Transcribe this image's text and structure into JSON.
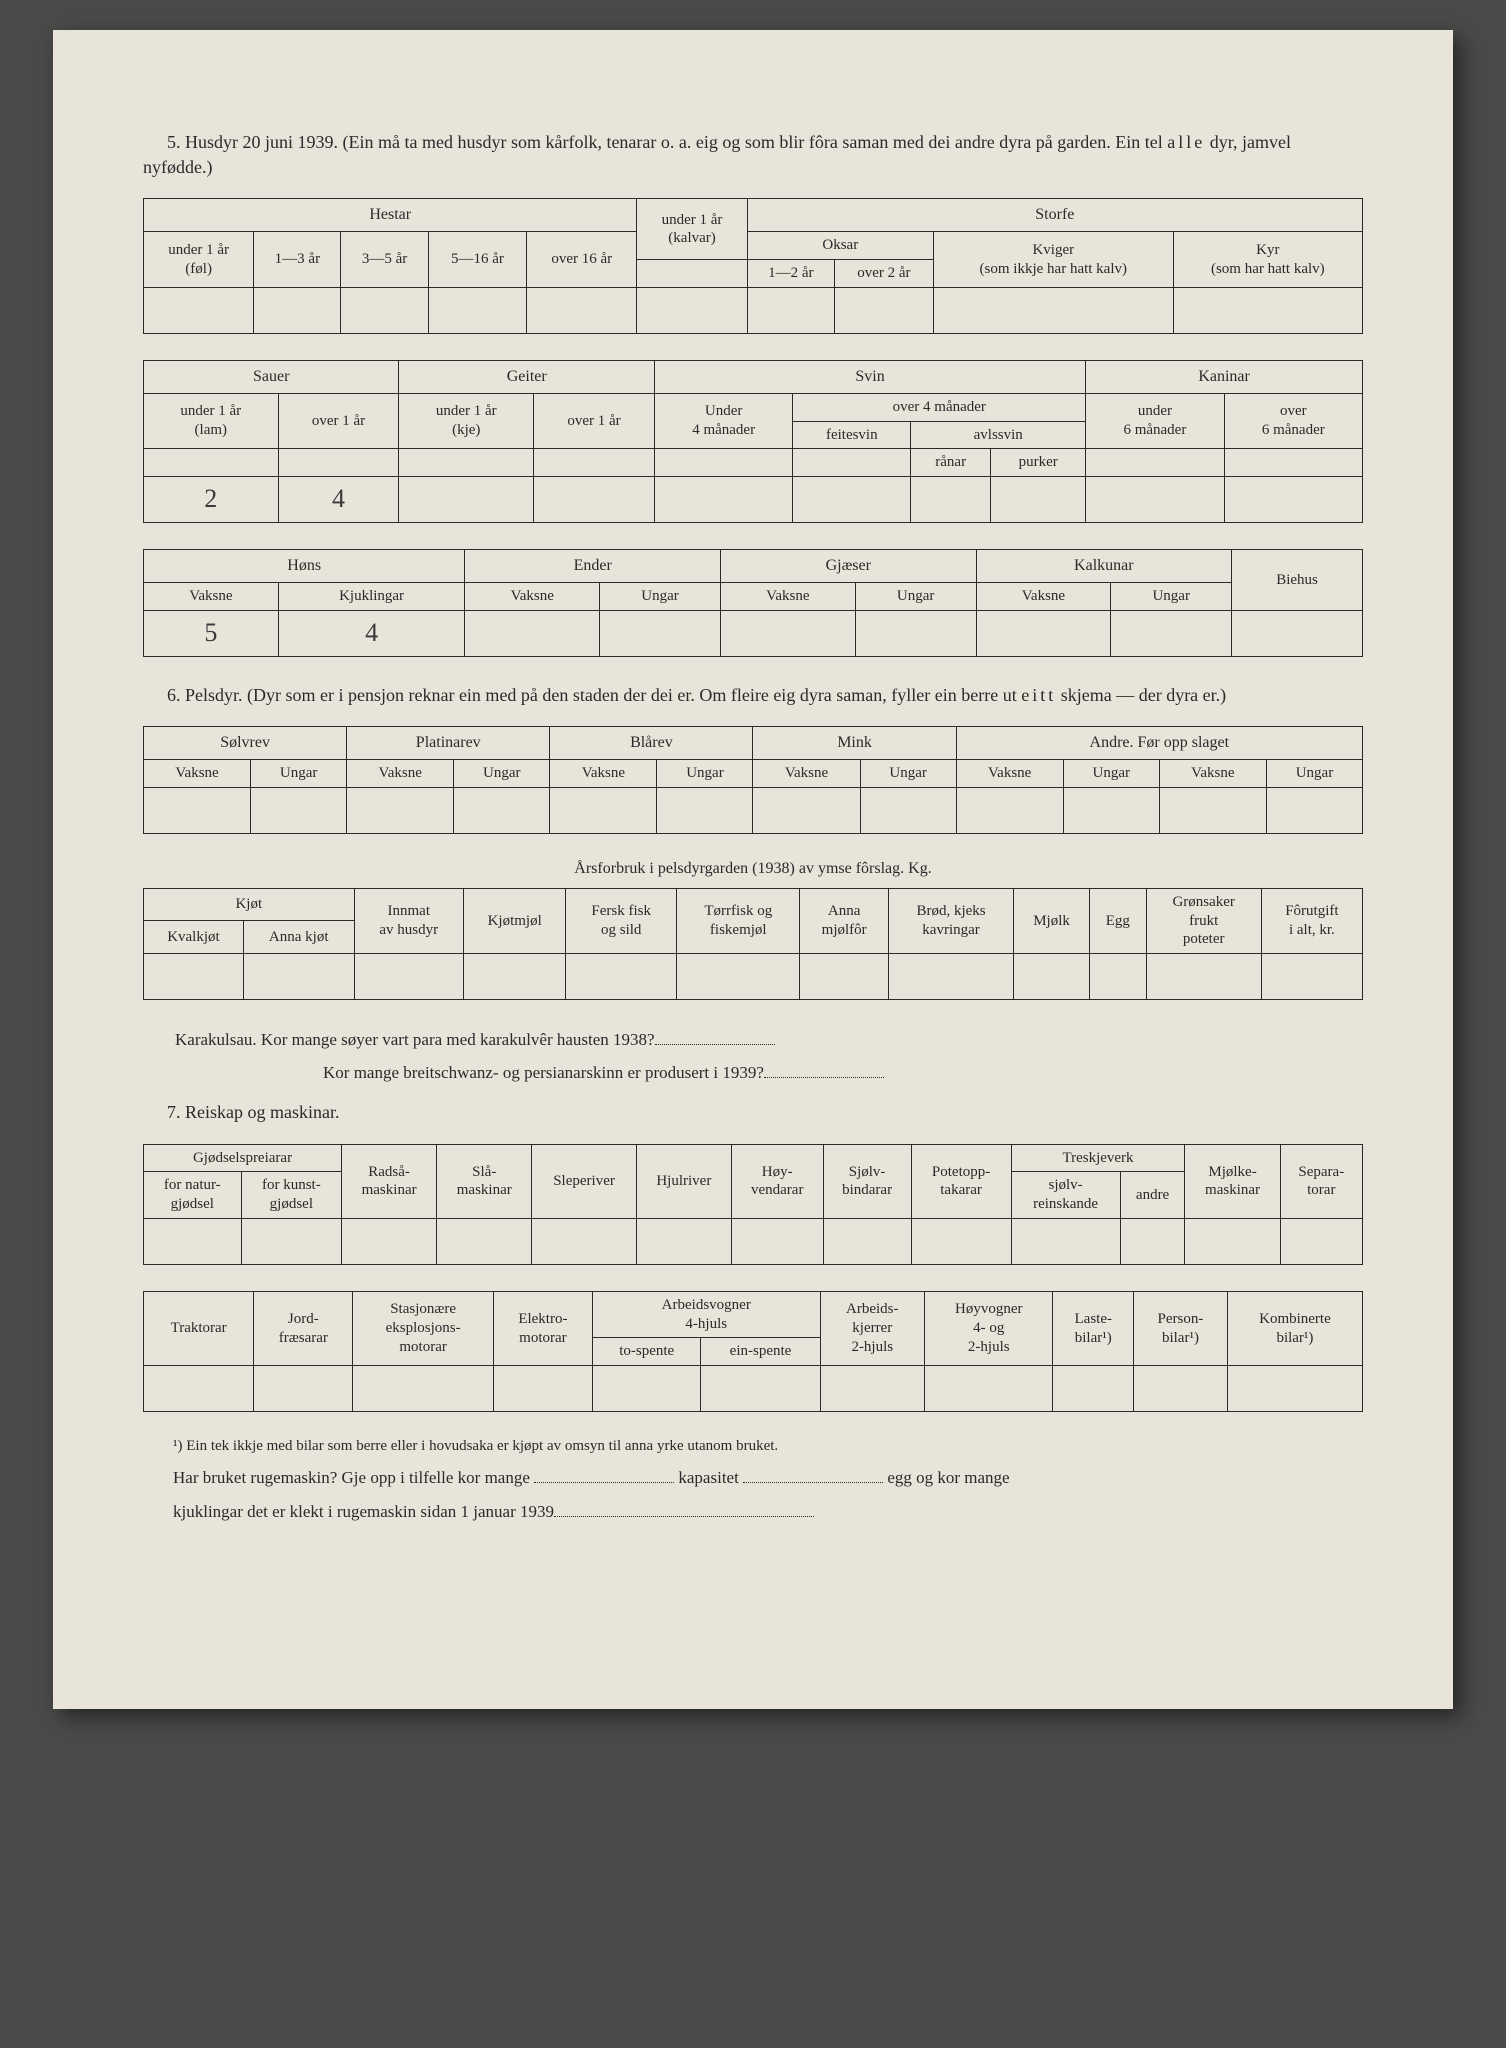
{
  "colors": {
    "page_bg": "#e8e4da",
    "text": "#2a2a2a",
    "border": "#2a2a2a",
    "handwriting": "#3a3a3a",
    "outer_bg": "#4a4a48"
  },
  "fonts": {
    "body_family": "Georgia, Times New Roman, serif",
    "body_size_pt": 13,
    "handwriting_family": "Brush Script MT, cursive",
    "handwriting_size_pt": 20
  },
  "section5": {
    "number": "5.",
    "title": "Husdyr 20 juni 1939.  (Ein må ta med husdyr som kårfolk, tenarar o. a. eig og som blir fôra saman med dei andre dyra på garden.  Ein tel ",
    "title_emph": "alle",
    "title_tail": " dyr, jamvel nyfødde.)",
    "hestar": {
      "group": "Hestar",
      "cols": [
        "under 1 år\n(føl)",
        "1—3 år",
        "3—5 år",
        "5—16 år",
        "over 16 år"
      ]
    },
    "storfe": {
      "group": "Storfe",
      "kalvar": "under 1 år\n(kalvar)",
      "oksar": {
        "group": "Oksar",
        "cols": [
          "1—2 år",
          "over 2 år"
        ]
      },
      "kviger": "Kviger\n(som ikkje har hatt kalv)",
      "kyr": "Kyr\n(som har hatt kalv)"
    },
    "sauer": {
      "group": "Sauer",
      "cols": [
        "under 1 år\n(lam)",
        "over 1 år"
      ]
    },
    "geiter": {
      "group": "Geiter",
      "cols": [
        "under 1 år\n(kje)",
        "over 1 år"
      ]
    },
    "svin": {
      "group": "Svin",
      "under4": "Under\n4 månader",
      "over4": {
        "group": "over 4 månader",
        "feitesvin": "feitesvin",
        "avlssvin": {
          "group": "avlssvin",
          "cols": [
            "rånar",
            "purker"
          ]
        }
      }
    },
    "kaninar": {
      "group": "Kaninar",
      "cols": [
        "under\n6 månader",
        "over\n6 månader"
      ]
    },
    "row2_values": {
      "sauer_lam": "2",
      "sauer_over1": "4"
    },
    "hons": {
      "group": "Høns",
      "cols": [
        "Vaksne",
        "Kjuklingar"
      ]
    },
    "ender": {
      "group": "Ender",
      "cols": [
        "Vaksne",
        "Ungar"
      ]
    },
    "gjaeser": {
      "group": "Gjæser",
      "cols": [
        "Vaksne",
        "Ungar"
      ]
    },
    "kalkunar": {
      "group": "Kalkunar",
      "cols": [
        "Vaksne",
        "Ungar"
      ]
    },
    "biehus": "Biehus",
    "row3_values": {
      "hons_vaksne": "5",
      "hons_kjuklingar": "4"
    }
  },
  "section6": {
    "number": "6.",
    "title": "Pelsdyr.  (Dyr som er i pensjon reknar ein med på den staden der dei er.  Om fleire eig dyra saman, fyller ein berre ut ",
    "title_emph": "eitt",
    "title_tail": " skjema — der dyra er.)",
    "groups": [
      "Sølvrev",
      "Platinarev",
      "Blårev",
      "Mink"
    ],
    "andre": "Andre.  Før opp slaget",
    "subcols": [
      "Vaksne",
      "Ungar"
    ],
    "forbruk_heading": "Årsforbruk i pelsdyrgarden (1938) av ymse fôrslag. Kg.",
    "forbruk_cols": {
      "kjot": {
        "group": "Kjøt",
        "cols": [
          "Kvalkjøt",
          "Anna kjøt"
        ]
      },
      "innmat": "Innmat\nav husdyr",
      "kjotmjol": "Kjøtmjøl",
      "ferskfisk": "Fersk fisk\nog sild",
      "torrfisk": "Tørrfisk og\nfiskemjøl",
      "annamjol": "Anna\nmjølfôr",
      "brod": "Brød, kjeks\nkavringar",
      "mjolk": "Mjølk",
      "egg": "Egg",
      "gronsaker": "Grønsaker\nfrukt\npoteter",
      "forutgift": "Fôrutgift\ni alt, kr."
    },
    "karakul_q1": "Karakulsau.  Kor mange søyer vart para med karakulvêr hausten 1938?",
    "karakul_q2": "Kor mange breitschwanz- og persianarskinn er produsert i 1939?"
  },
  "section7": {
    "number": "7.",
    "title": "Reiskap og maskinar.",
    "row1": {
      "gjodsel": {
        "group": "Gjødselspreiarar",
        "cols": [
          "for natur-\ngjødsel",
          "for kunst-\ngjødsel"
        ]
      },
      "radsa": "Radså-\nmaskinar",
      "sla": "Slå-\nmaskinar",
      "sleperiver": "Sleperiver",
      "hjulriver": "Hjulriver",
      "hoyvend": "Høy-\nvendarar",
      "sjelvbind": "Sjølv-\nbindarar",
      "potet": "Potetopp-\ntakarar",
      "treskje": {
        "group": "Treskjeverk",
        "cols": [
          "sjølv-\nreinskande",
          "andre"
        ]
      },
      "mjolke": "Mjølke-\nmaskinar",
      "separator": "Separa-\ntorar"
    },
    "row2": {
      "traktorar": "Traktorar",
      "jordfres": "Jord-\nfræsarar",
      "stasj": "Stasjonære\neksplosjons-\nmotorar",
      "elektro": "Elektro-\nmotorar",
      "arbeidsvogner": {
        "group": "Arbeidsvogner\n4-hjuls",
        "cols": [
          "to-spente",
          "ein-spente"
        ]
      },
      "arbeidskjerrer": "Arbeids-\nkjerrer\n2-hjuls",
      "hoyvogner": "Høyvogner\n4- og\n2-hjuls",
      "laste": "Laste-\nbilar¹)",
      "person": "Person-\nbilar¹)",
      "kombinerte": "Kombinerte\nbilar¹)"
    },
    "footnote": "¹) Ein tek ikkje med bilar som berre eller i hovudsaka er kjøpt av omsyn til anna yrke utanom bruket.",
    "fill1a": "Har bruket rugemaskin?  Gje opp i tilfelle kor mange ",
    "fill1b": " kapasitet ",
    "fill1c": " egg og kor mange",
    "fill2a": "kjuklingar det er klekt i rugemaskin sidan 1 januar 1939"
  }
}
